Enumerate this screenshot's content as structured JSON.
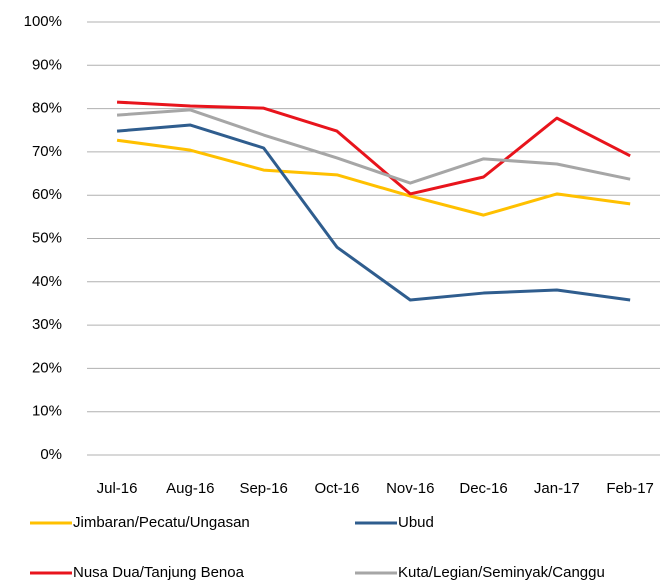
{
  "chart_data": {
    "type": "line",
    "categories": [
      "Jul-16",
      "Aug-16",
      "Sep-16",
      "Oct-16",
      "Nov-16",
      "Dec-16",
      "Jan-17",
      "Feb-17"
    ],
    "series": [
      {
        "name": "Jimbaran/Pecatu/Ungasan",
        "color": "#ffc000",
        "values": [
          72.7,
          70.4,
          65.8,
          64.7,
          59.8,
          55.4,
          60.3,
          58.0
        ]
      },
      {
        "name": "Ubud",
        "color": "#2f5d8e",
        "values": [
          74.8,
          76.2,
          70.9,
          48.0,
          35.8,
          37.4,
          38.1,
          35.8
        ]
      },
      {
        "name": "Nusa Dua/Tanjung Benoa",
        "color": "#e8141c",
        "values": [
          81.5,
          80.6,
          80.1,
          74.8,
          60.3,
          64.2,
          77.8,
          69.1
        ]
      },
      {
        "name": "Kuta/Legian/Seminyak/Canggu",
        "color": "#a6a6a6",
        "values": [
          78.5,
          79.7,
          73.9,
          68.6,
          62.8,
          68.4,
          67.2,
          63.7
        ]
      }
    ],
    "ylim": [
      0,
      100
    ],
    "yticks": [
      {
        "value": 0,
        "label": "0%"
      },
      {
        "value": 10,
        "label": "10%"
      },
      {
        "value": 20,
        "label": "20%"
      },
      {
        "value": 30,
        "label": "30%"
      },
      {
        "value": 40,
        "label": "40%"
      },
      {
        "value": 50,
        "label": "50%"
      },
      {
        "value": 60,
        "label": "60%"
      },
      {
        "value": 70,
        "label": "70%"
      },
      {
        "value": 80,
        "label": "80%"
      },
      {
        "value": 90,
        "label": "90%"
      },
      {
        "value": 100,
        "label": "100%"
      }
    ],
    "grid": true
  }
}
